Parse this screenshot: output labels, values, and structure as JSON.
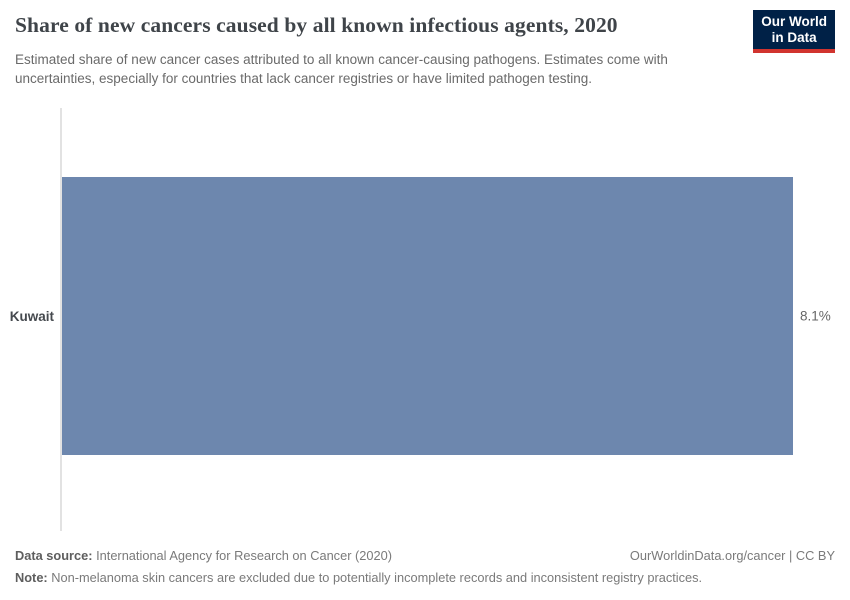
{
  "header": {
    "title": "Share of new cancers caused by all known infectious agents, 2020",
    "subtitle": "Estimated share of new cancer cases attributed to all known cancer-causing pathogens. Estimates come with uncertainties, especially for countries that lack cancer registries or have limited pathogen testing.",
    "logo": {
      "line1": "Our World",
      "line2": "in Data"
    }
  },
  "chart_data": {
    "type": "bar",
    "orientation": "horizontal",
    "title": "Share of new cancers caused by all known infectious agents, 2020",
    "categories": [
      "Kuwait"
    ],
    "values": [
      8.1
    ],
    "value_labels": [
      "8.1%"
    ],
    "xlabel": "",
    "ylabel": "",
    "xlim": [
      0,
      8.1
    ],
    "grid": false,
    "legend": "none",
    "bar_color": "#6d87ae",
    "axis_line_color": "#e2e2e2"
  },
  "footer": {
    "source_label": "Data source:",
    "source_text": " International Agency for Research on Cancer (2020)",
    "credit": "OurWorldinData.org/cancer | CC BY",
    "note_label": "Note:",
    "note_text": " Non-melanoma skin cancers are excluded due to potentially incomplete records and inconsistent registry practices."
  }
}
